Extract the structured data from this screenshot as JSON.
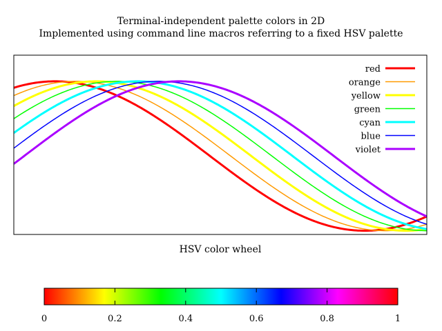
{
  "chart_data": {
    "type": "line",
    "title": "Terminal-independent palette colors in 2D",
    "subtitle": "Implemented using command line macros referring to a fixed HSV palette",
    "xlabel": "HSV color wheel",
    "ylabel": "",
    "xlim": [
      0,
      1
    ],
    "ylim": [
      -1.05,
      1.35
    ],
    "grid": false,
    "legend_position": "top-right",
    "series_function": "cos(2*pi*(x - phase) / 1.5)",
    "series": [
      {
        "name": "red",
        "color": "#ff0000",
        "phase": 0.1,
        "line_weight": "thick"
      },
      {
        "name": "orange",
        "color": "#ff9a00",
        "phase": 0.15,
        "line_weight": "thin"
      },
      {
        "name": "yellow",
        "color": "#ffff00",
        "phase": 0.2,
        "line_weight": "thick"
      },
      {
        "name": "green",
        "color": "#00ff00",
        "phase": 0.25,
        "line_weight": "thin"
      },
      {
        "name": "cyan",
        "color": "#00ffff",
        "phase": 0.3,
        "line_weight": "thick"
      },
      {
        "name": "blue",
        "color": "#0000ff",
        "phase": 0.35,
        "line_weight": "thin"
      },
      {
        "name": "violet",
        "color": "#aa00ff",
        "phase": 0.4,
        "line_weight": "thick"
      }
    ],
    "colorbar": {
      "range": [
        0,
        1
      ],
      "ticks": [
        0,
        0.2,
        0.4,
        0.6,
        0.8,
        1
      ],
      "tick_labels": [
        "0",
        "0.2",
        "0.4",
        "0.6",
        "0.8",
        "1"
      ],
      "gradient_stops": [
        {
          "value": 0.0,
          "color": "#ff0000"
        },
        {
          "value": 0.17,
          "color": "#ffff00"
        },
        {
          "value": 0.33,
          "color": "#00ff00"
        },
        {
          "value": 0.5,
          "color": "#00ffff"
        },
        {
          "value": 0.67,
          "color": "#0000ff"
        },
        {
          "value": 0.83,
          "color": "#ff00ff"
        },
        {
          "value": 1.0,
          "color": "#ff0000"
        }
      ]
    }
  }
}
